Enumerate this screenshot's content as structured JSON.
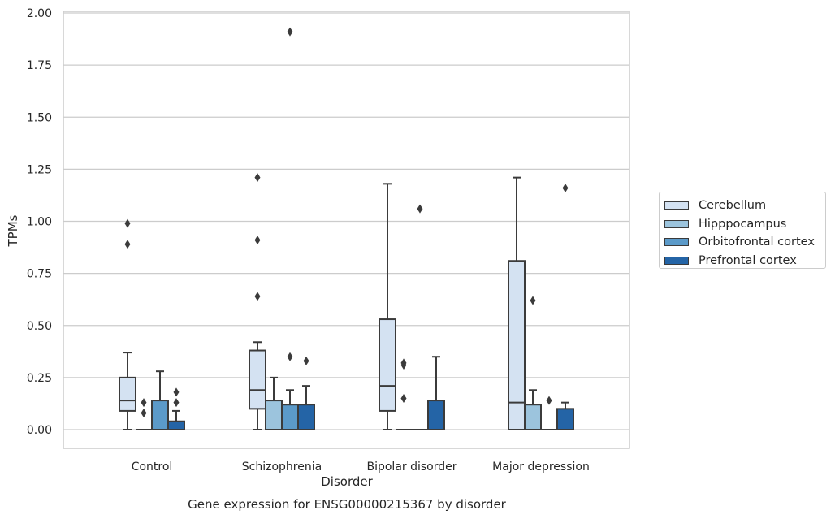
{
  "chart_data": {
    "type": "boxplot",
    "title": "Gene expression for ENSG00000215367 by disorder",
    "xlabel": "Disorder",
    "ylabel": "TPMs",
    "ylim": [
      -0.09,
      2.01
    ],
    "yticks": [
      "0.00",
      "0.25",
      "0.50",
      "0.75",
      "1.00",
      "1.25",
      "1.50",
      "1.75",
      "2.00"
    ],
    "grid": true,
    "legend_position": "right",
    "categories": [
      "Control",
      "Schizophrenia",
      "Bipolar disorder",
      "Major depression"
    ],
    "series": [
      {
        "name": "Cerebellum",
        "color": "#d4e2f2",
        "boxes": [
          {
            "whislo": 0.0,
            "q1": 0.09,
            "med": 0.14,
            "q3": 0.25,
            "whishi": 0.37,
            "fliers": [
              0.89,
              0.99
            ]
          },
          {
            "whislo": 0.0,
            "q1": 0.1,
            "med": 0.19,
            "q3": 0.38,
            "whishi": 0.42,
            "fliers": [
              0.64,
              0.91,
              1.21
            ]
          },
          {
            "whislo": 0.0,
            "q1": 0.09,
            "med": 0.21,
            "q3": 0.53,
            "whishi": 1.18,
            "fliers": []
          },
          {
            "whislo": 0.0,
            "q1": 0.0,
            "med": 0.13,
            "q3": 0.81,
            "whishi": 1.21,
            "fliers": []
          }
        ]
      },
      {
        "name": "Hipppocampus",
        "color": "#9cc4dd",
        "boxes": [
          {
            "whislo": 0.0,
            "q1": 0.0,
            "med": 0.0,
            "q3": 0.0,
            "whishi": 0.0,
            "fliers": [
              0.08,
              0.13
            ]
          },
          {
            "whislo": 0.0,
            "q1": 0.0,
            "med": 0.0,
            "q3": 0.14,
            "whishi": 0.25,
            "fliers": []
          },
          {
            "whislo": 0.0,
            "q1": 0.0,
            "med": 0.0,
            "q3": 0.0,
            "whishi": 0.0,
            "fliers": [
              0.15,
              0.31,
              0.32
            ]
          },
          {
            "whislo": 0.0,
            "q1": 0.0,
            "med": 0.0,
            "q3": 0.12,
            "whishi": 0.19,
            "fliers": [
              0.62
            ]
          }
        ]
      },
      {
        "name": "Orbitofrontal cortex",
        "color": "#5b9ac9",
        "boxes": [
          {
            "whislo": 0.0,
            "q1": 0.0,
            "med": 0.0,
            "q3": 0.14,
            "whishi": 0.28,
            "fliers": []
          },
          {
            "whislo": 0.0,
            "q1": 0.0,
            "med": 0.0,
            "q3": 0.12,
            "whishi": 0.19,
            "fliers": [
              0.35,
              1.91
            ]
          },
          {
            "whislo": 0.0,
            "q1": 0.0,
            "med": 0.0,
            "q3": 0.0,
            "whishi": 0.0,
            "fliers": [
              1.06
            ]
          },
          {
            "whislo": 0.0,
            "q1": 0.0,
            "med": 0.0,
            "q3": 0.0,
            "whishi": 0.0,
            "fliers": [
              0.14
            ]
          }
        ]
      },
      {
        "name": "Prefrontal cortex",
        "color": "#2464a6",
        "boxes": [
          {
            "whislo": 0.0,
            "q1": 0.0,
            "med": 0.0,
            "q3": 0.04,
            "whishi": 0.09,
            "fliers": [
              0.13,
              0.18
            ]
          },
          {
            "whislo": 0.0,
            "q1": 0.0,
            "med": 0.0,
            "q3": 0.12,
            "whishi": 0.21,
            "fliers": [
              0.33
            ]
          },
          {
            "whislo": 0.0,
            "q1": 0.0,
            "med": 0.0,
            "q3": 0.14,
            "whishi": 0.35,
            "fliers": []
          },
          {
            "whislo": 0.0,
            "q1": 0.0,
            "med": 0.0,
            "q3": 0.1,
            "whishi": 0.13,
            "fliers": [
              1.16
            ]
          }
        ]
      }
    ]
  }
}
